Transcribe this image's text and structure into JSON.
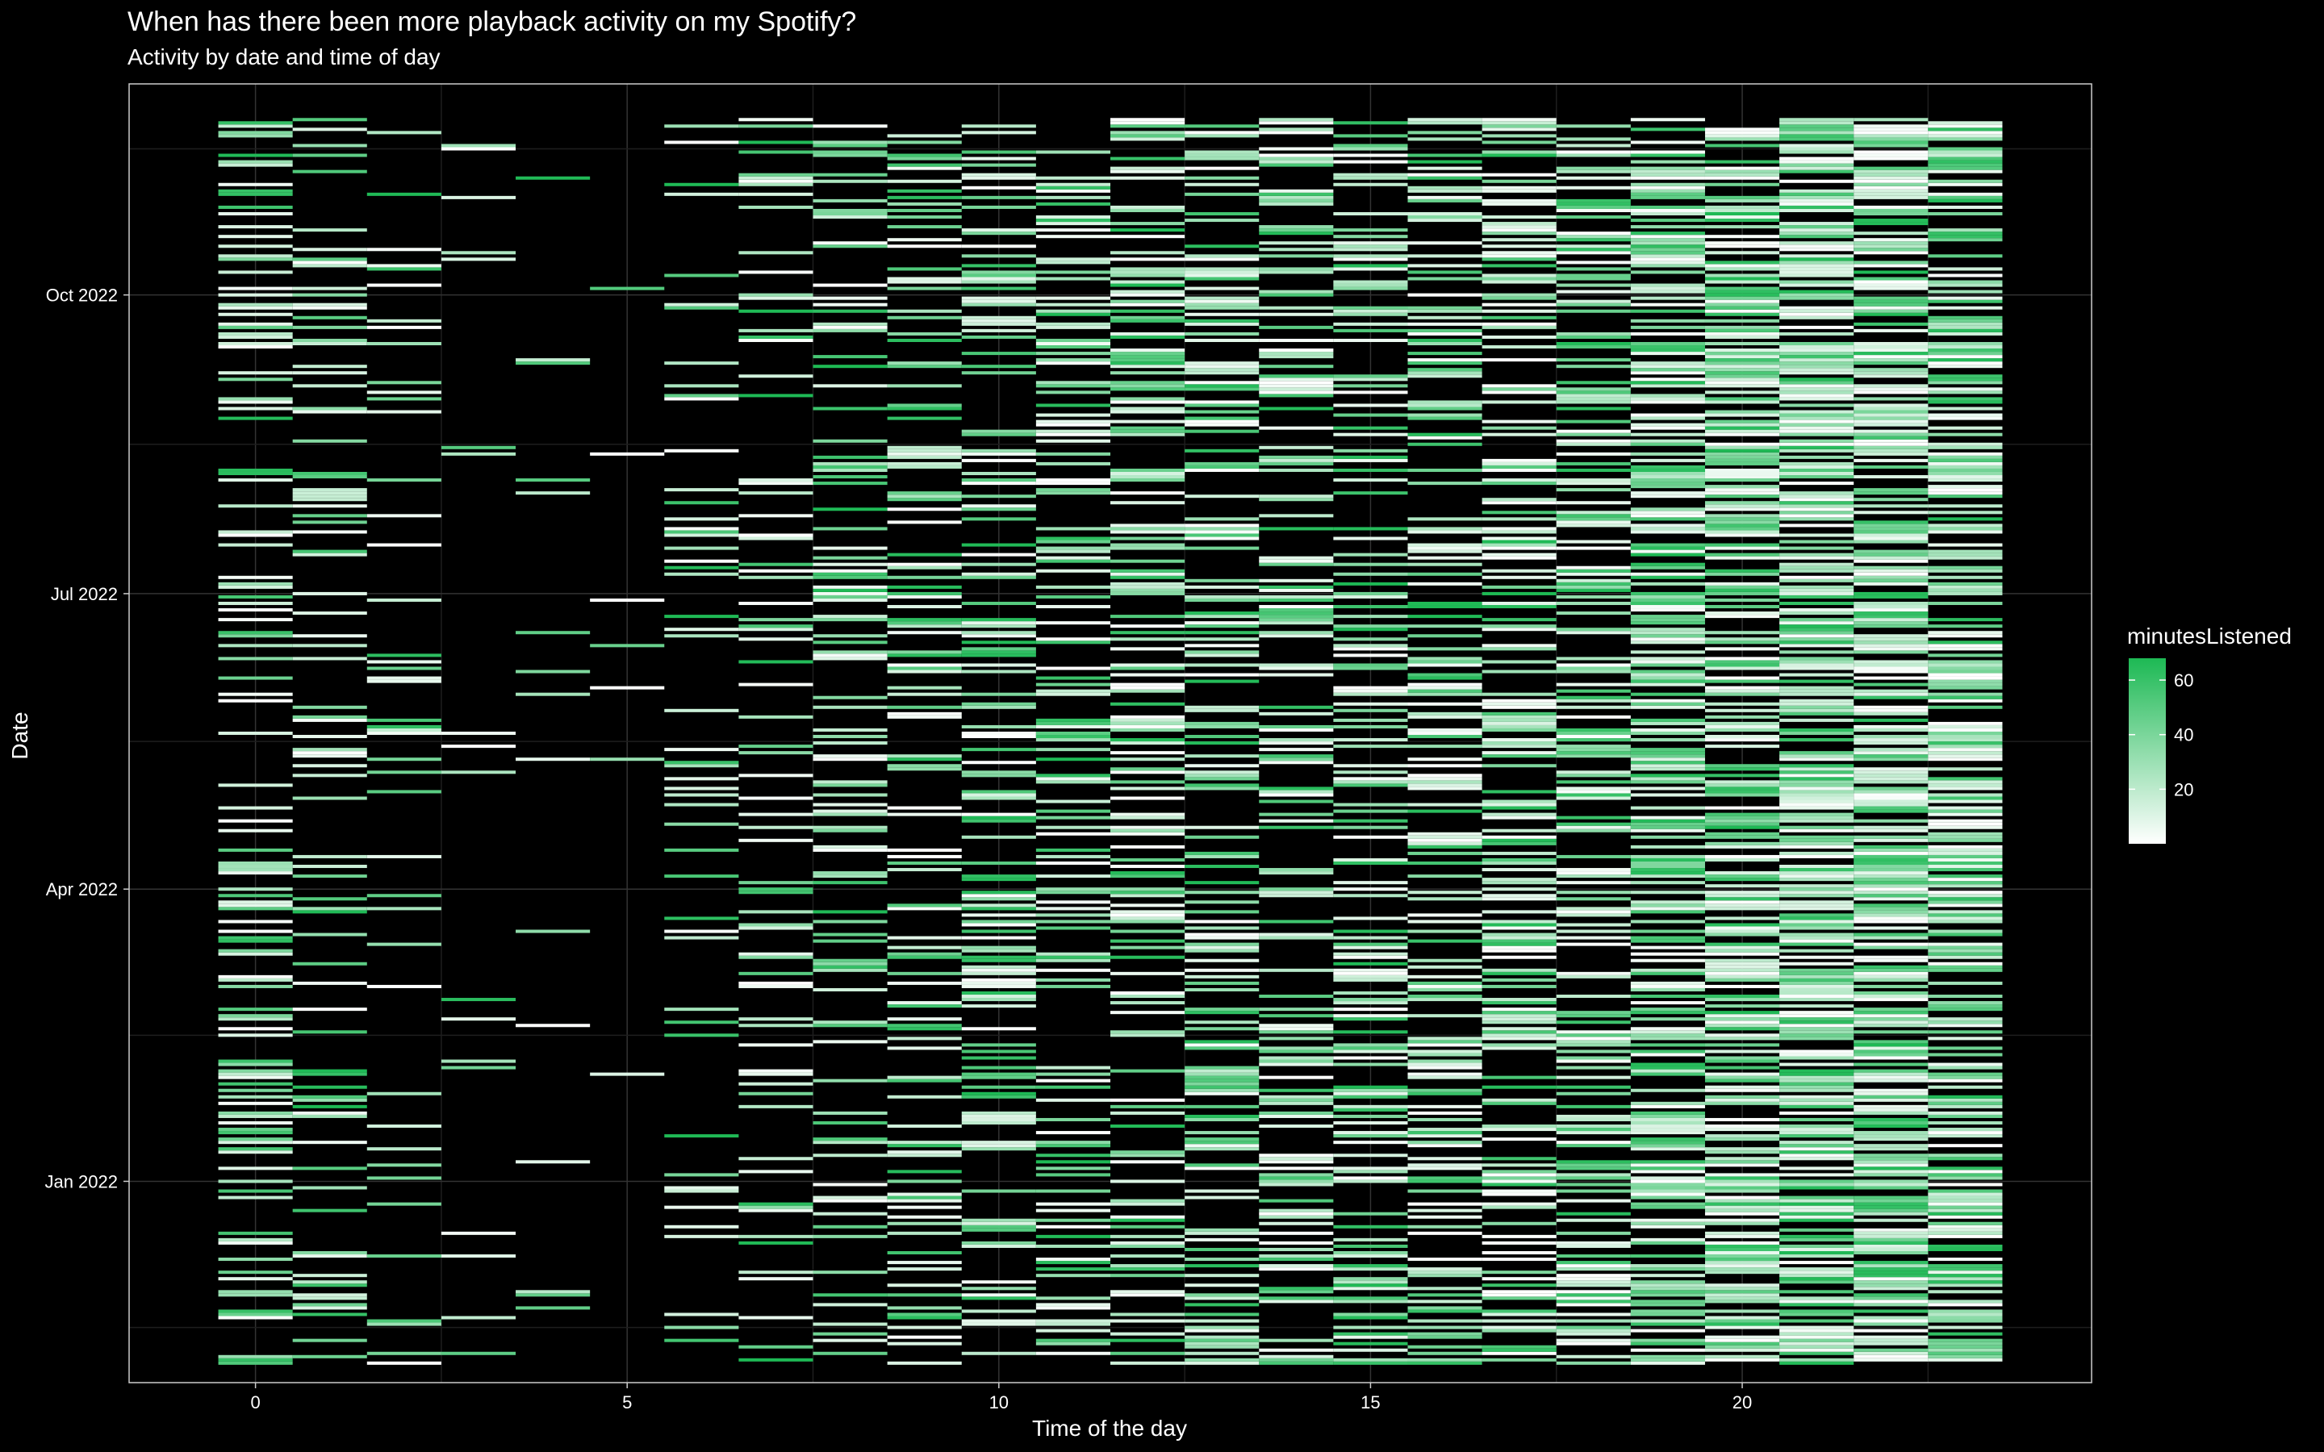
{
  "chart_data": {
    "type": "heatmap",
    "title": "When has there been more playback activity on my Spotify?",
    "subtitle": "Activity by date and time of day",
    "xlabel": "Time of the day",
    "ylabel": "Date",
    "xlim": [
      -1.7,
      24.7
    ],
    "x_ticks": [
      0,
      5,
      10,
      15,
      20
    ],
    "y_range": [
      "2021-10-31",
      "2022-12-05"
    ],
    "y_ticks": [
      {
        "date": "2022-01-01",
        "label": "Jan 2022"
      },
      {
        "date": "2022-04-01",
        "label": "Apr 2022"
      },
      {
        "date": "2022-07-01",
        "label": "Jul 2022"
      },
      {
        "date": "2022-10-01",
        "label": "Oct 2022"
      }
    ],
    "hours": [
      0,
      1,
      2,
      3,
      4,
      5,
      6,
      7,
      8,
      9,
      10,
      11,
      12,
      13,
      14,
      15,
      16,
      17,
      18,
      19,
      20,
      21,
      22,
      23
    ],
    "date_start": "2021-11-06",
    "date_end": "2022-11-24",
    "hour_activity": [
      0.3,
      0.2,
      0.12,
      0.05,
      0.04,
      0.03,
      0.14,
      0.18,
      0.27,
      0.33,
      0.38,
      0.37,
      0.37,
      0.4,
      0.4,
      0.37,
      0.4,
      0.45,
      0.5,
      0.6,
      0.66,
      0.72,
      0.72,
      0.66
    ],
    "legend": {
      "title": "minutesListened",
      "range": [
        0,
        68
      ],
      "ticks": [
        20,
        40,
        60
      ],
      "color_low": "#ffffff",
      "color_high": "#1db954",
      "position": "right"
    },
    "grid": true,
    "background": "#000000"
  }
}
